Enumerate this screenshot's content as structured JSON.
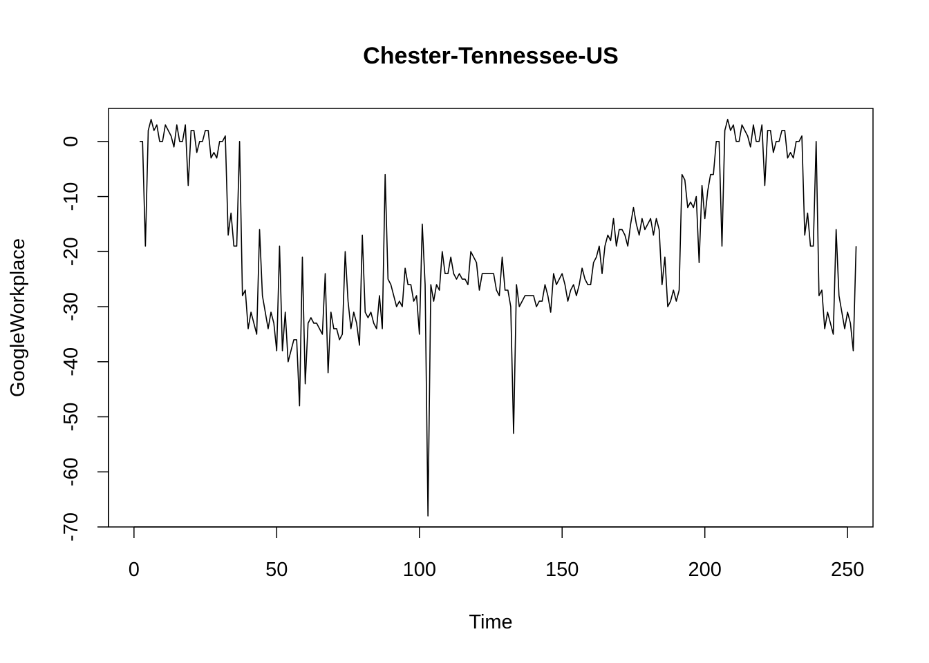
{
  "chart_data": {
    "type": "line",
    "title": "Chester-Tennessee-US",
    "xlabel": "Time",
    "ylabel": "GoogleWorkplace",
    "xlim": [
      -8.92,
      258.92
    ],
    "ylim": [
      -70,
      6
    ],
    "xticks": [
      0,
      50,
      100,
      150,
      200,
      250
    ],
    "yticks": [
      0,
      -10,
      -20,
      -30,
      -40,
      -50,
      -60,
      -70
    ],
    "grid": false,
    "legend": "none",
    "line_color": "#000000",
    "series": [
      {
        "x_start": 2,
        "values": [
          0,
          0,
          -19,
          2,
          4,
          2,
          3,
          0,
          0,
          3,
          2,
          1,
          -1,
          3,
          0,
          0,
          3,
          -8,
          2,
          2,
          -2,
          0,
          0,
          2,
          2,
          -3,
          -2,
          -3,
          0,
          0,
          1,
          -17,
          -13,
          -19,
          -19,
          0,
          -28,
          -27,
          -34,
          -31,
          -33,
          -35,
          -16,
          -28,
          -31,
          -34,
          -31,
          -33,
          -38,
          -19,
          -38,
          -31,
          -40,
          -38,
          -36,
          -36,
          -48,
          -21,
          -44,
          -33,
          -32,
          -33,
          -33,
          -34,
          -35,
          -24,
          -42,
          -31,
          -34,
          -34,
          -36,
          -35,
          -20,
          -29,
          -34,
          -31,
          -33,
          -37,
          -17,
          -31,
          -32,
          -31,
          -33,
          -34,
          -28,
          -34,
          -6,
          -25,
          -26,
          -28,
          -30,
          -29,
          -30,
          -23,
          -26,
          -26,
          -29,
          -28,
          -35,
          -15,
          -26,
          -68,
          -26,
          -29,
          -26,
          -27,
          -20,
          -24,
          -24,
          -21,
          -24,
          -25,
          -24,
          -25,
          -25,
          -26,
          -20,
          -21,
          -22,
          -27,
          -24,
          -24,
          -24,
          -24,
          -24,
          -27,
          -28,
          -21,
          -27,
          -27,
          -30,
          -53,
          -26,
          -30,
          -29,
          -28,
          -28,
          -28,
          -28,
          -30,
          -29,
          -29,
          -26,
          -28,
          -31,
          -24,
          -26,
          -25,
          -24,
          -26,
          -29,
          -27,
          -26,
          -28,
          -26,
          -23,
          -25,
          -26,
          -26,
          -22,
          -21,
          -19,
          -24,
          -19,
          -17,
          -18,
          -14,
          -19,
          -16,
          -16,
          -17,
          -19,
          -15,
          -12,
          -15,
          -17,
          -14,
          -16,
          -15,
          -14,
          -17,
          -14,
          -16,
          -26,
          -21,
          -30,
          -29,
          -27,
          -29,
          -27,
          -6,
          -7,
          -12,
          -11,
          -12,
          -10,
          -22,
          -8,
          -14,
          -9,
          -6,
          -6,
          0,
          0,
          -19,
          2,
          4,
          2,
          3,
          0,
          0,
          3,
          2,
          1,
          -1,
          3,
          0,
          0,
          3,
          -8,
          2,
          2,
          -2,
          0,
          0,
          2,
          2,
          -3,
          -2,
          -3,
          0,
          0,
          1,
          -17,
          -13,
          -19,
          -19,
          0,
          -28,
          -27,
          -34,
          -31,
          -33,
          -35,
          -16,
          -28,
          -31,
          -34,
          -31,
          -33,
          -38,
          -19
        ]
      }
    ]
  }
}
